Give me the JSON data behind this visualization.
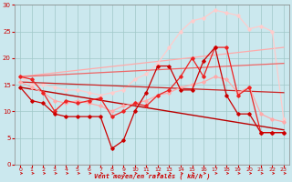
{
  "xlabel": "Vent moyen/en rafales ( km/h )",
  "xlim": [
    -0.5,
    23.5
  ],
  "ylim": [
    0,
    30
  ],
  "yticks": [
    0,
    5,
    10,
    15,
    20,
    25,
    30
  ],
  "xticks": [
    0,
    1,
    2,
    3,
    4,
    5,
    6,
    7,
    8,
    9,
    10,
    11,
    12,
    13,
    14,
    15,
    16,
    17,
    18,
    19,
    20,
    21,
    22,
    23
  ],
  "bg_color": "#cbe8ee",
  "grid_color": "#a0c8c8",
  "lines": [
    {
      "x": [
        0,
        1,
        2,
        3,
        4,
        5,
        6,
        7,
        8,
        9,
        10,
        11,
        12,
        13,
        14,
        15,
        16,
        17,
        18,
        19,
        20,
        21,
        22,
        23
      ],
      "y": [
        14.5,
        12,
        11.5,
        9.5,
        9,
        9,
        9,
        9,
        3,
        4.5,
        10,
        13.5,
        18.5,
        18.5,
        14,
        14,
        19.5,
        22,
        13,
        9.5,
        9.5,
        6,
        6,
        6
      ],
      "color": "#cc0000",
      "lw": 0.9,
      "marker": "D",
      "ms": 1.8,
      "zorder": 5
    },
    {
      "x": [
        0,
        1,
        2,
        3,
        4,
        5,
        6,
        7,
        8,
        9,
        10,
        11,
        12,
        13,
        14,
        15,
        16,
        17,
        18,
        19,
        20,
        21,
        22,
        23
      ],
      "y": [
        16.5,
        16,
        13.5,
        10,
        12,
        11.5,
        12,
        12.5,
        9,
        10,
        11.5,
        11,
        13,
        14,
        16.5,
        20,
        16.5,
        22,
        22,
        13,
        14.5,
        6,
        6,
        6
      ],
      "color": "#ee2222",
      "lw": 0.9,
      "marker": "D",
      "ms": 1.8,
      "zorder": 4
    },
    {
      "x": [
        0,
        23
      ],
      "y": [
        14.5,
        6.5
      ],
      "color": "#bb0000",
      "lw": 1.0,
      "marker": null,
      "ms": 0,
      "zorder": 3
    },
    {
      "x": [
        0,
        23
      ],
      "y": [
        15.5,
        13.5
      ],
      "color": "#cc2222",
      "lw": 0.9,
      "marker": null,
      "ms": 0,
      "zorder": 3
    },
    {
      "x": [
        0,
        23
      ],
      "y": [
        16.5,
        19.0
      ],
      "color": "#ee6666",
      "lw": 0.9,
      "marker": null,
      "ms": 0,
      "zorder": 3
    },
    {
      "x": [
        0,
        23
      ],
      "y": [
        16.5,
        22.0
      ],
      "color": "#ffaaaa",
      "lw": 0.9,
      "marker": null,
      "ms": 0,
      "zorder": 2
    },
    {
      "x": [
        0,
        1,
        2,
        3,
        4,
        5,
        6,
        7,
        8,
        9,
        10,
        11,
        12,
        13,
        14,
        15,
        16,
        17,
        18,
        19,
        20,
        21,
        22,
        23
      ],
      "y": [
        16.5,
        15,
        15,
        14.5,
        14,
        14,
        13.5,
        13,
        13.5,
        14,
        16,
        17,
        19,
        22,
        25,
        27,
        27.5,
        29,
        28.5,
        28,
        25.5,
        26,
        25,
        8.5
      ],
      "color": "#ffcccc",
      "lw": 0.9,
      "marker": "D",
      "ms": 1.8,
      "zorder": 2
    },
    {
      "x": [
        0,
        1,
        2,
        3,
        4,
        5,
        6,
        7,
        8,
        9,
        10,
        11,
        12,
        13,
        14,
        15,
        16,
        17,
        18,
        19,
        20,
        21,
        22,
        23
      ],
      "y": [
        15.5,
        14.5,
        13.5,
        12,
        11.5,
        12,
        11.5,
        11,
        10,
        11,
        11.5,
        12,
        13,
        13.5,
        14.5,
        15,
        15.5,
        16.5,
        16,
        13.5,
        14.5,
        9.5,
        8.5,
        8
      ],
      "color": "#ffaaaa",
      "lw": 0.9,
      "marker": "D",
      "ms": 1.8,
      "zorder": 3
    }
  ]
}
